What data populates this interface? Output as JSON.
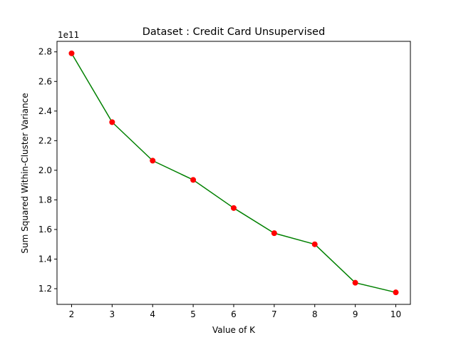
{
  "chart_data": {
    "type": "line",
    "title": "Dataset : Credit Card Unsupervised",
    "xlabel": "Value of K",
    "ylabel": "Sum Squared Within-Cluster Variance",
    "y_scale_label": "1e11",
    "x": [
      2,
      3,
      4,
      5,
      6,
      7,
      8,
      9,
      10
    ],
    "series": [
      {
        "values": [
          2.79,
          2.325,
          2.065,
          1.935,
          1.745,
          1.575,
          1.5,
          1.24,
          1.175
        ],
        "line_color": "#008000",
        "marker_color": "#ff0000"
      }
    ],
    "x_ticks": [
      "2",
      "3",
      "4",
      "5",
      "6",
      "7",
      "8",
      "9",
      "10"
    ],
    "y_ticks": [
      "1.2",
      "1.4",
      "1.6",
      "1.8",
      "2.0",
      "2.2",
      "2.4",
      "2.6",
      "2.8"
    ],
    "xlim": [
      1.64,
      10.36
    ],
    "ylim": [
      1.094,
      2.871
    ],
    "grid": false
  }
}
